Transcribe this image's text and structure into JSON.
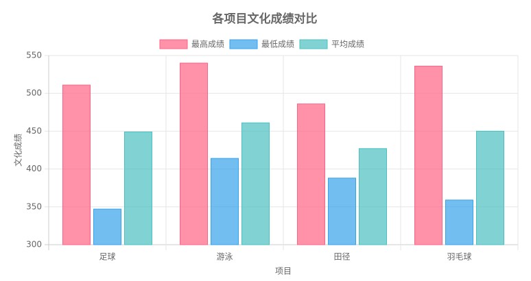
{
  "chart_data": {
    "type": "bar",
    "title": "各项目文化成绩对比",
    "x_label": "项目",
    "y_label": "文化成绩",
    "categories": [
      "足球",
      "游泳",
      "田径",
      "羽毛球"
    ],
    "series": [
      {
        "name": "最高成绩",
        "color": "#ff6384",
        "values": [
          511,
          540,
          486,
          536
        ]
      },
      {
        "name": "最低成绩",
        "color": "#36a2eb",
        "values": [
          347,
          414,
          388,
          359
        ]
      },
      {
        "name": "平均成绩",
        "color": "#4bc0c0",
        "values": [
          449,
          461,
          427,
          450
        ]
      }
    ],
    "ylim": [
      300,
      550
    ],
    "yticks": [
      300,
      350,
      400,
      450,
      500,
      550
    ],
    "grid": true,
    "legend": "top"
  }
}
